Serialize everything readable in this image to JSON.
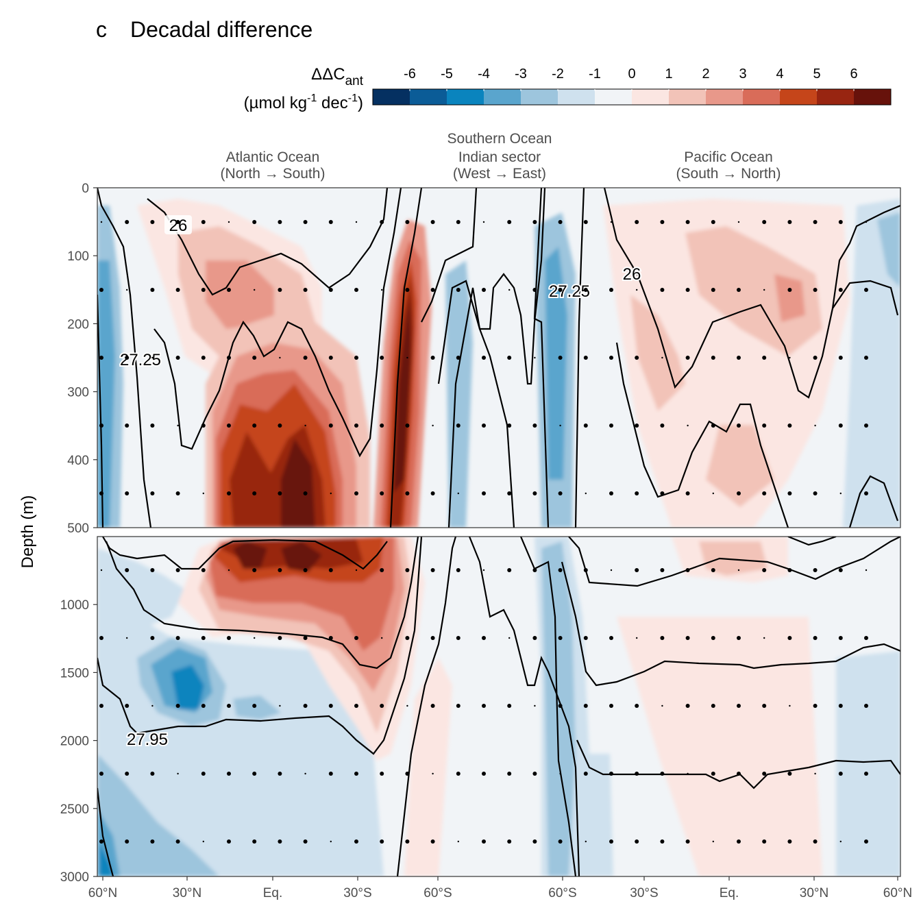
{
  "figure": {
    "panel_letter": "c",
    "title": "Decadal difference"
  },
  "legend": {
    "title_line1_main": "ΔΔC",
    "title_line1_sub": "ant",
    "title_line2_a": "(µmol kg",
    "title_line2_sup1": "-1",
    "title_line2_b": " dec",
    "title_line2_sup2": "-1",
    "title_line2_c": ")",
    "ticks": [
      "-6",
      "-5",
      "-4",
      "-3",
      "-2",
      "-1",
      "0",
      "1",
      "2",
      "3",
      "4",
      "5",
      "6"
    ],
    "colors": [
      "#053061",
      "#0b5c97",
      "#0a84be",
      "#5aa5cd",
      "#9dc5dd",
      "#cfe1ee",
      "#f1f4f7",
      "#fbe6e2",
      "#f2c3b8",
      "#e8988a",
      "#d96c59",
      "#c5451a",
      "#982511",
      "#67120b"
    ]
  },
  "sections": [
    {
      "line1": "",
      "line2": "Atlantic Ocean",
      "line3": "(North → South)"
    },
    {
      "line1": "Southern Ocean",
      "line2": "Indian sector",
      "line3": "(West → East)"
    },
    {
      "line1": "",
      "line2": "Pacific Ocean",
      "line3": "(South → North)"
    }
  ],
  "chart_data": {
    "type": "heatmap",
    "description_free": true,
    "ylabel": "Depth (m)",
    "upper_panel": {
      "ylim": [
        500,
        0
      ],
      "yticks": [
        "0",
        "100",
        "200",
        "300",
        "400",
        "500"
      ]
    },
    "lower_panel": {
      "ylim": [
        3000,
        500
      ],
      "yticks": [
        "1000",
        "1500",
        "2000",
        "2500",
        "3000"
      ]
    },
    "xticks": [
      "60°N",
      "30°N",
      "Eq.",
      "30°S",
      "60°S",
      "60°S",
      "30°S",
      "Eq.",
      "30°N",
      "60°N"
    ],
    "isopycnal_labels": [
      "26",
      "27.25",
      "26",
      "27.25",
      "27.95"
    ],
    "colorbar_range": [
      -6,
      6
    ],
    "features": [
      {
        "region": "Atlantic 20°N–20°S",
        "depth_range": [
          300,
          700
        ],
        "value": 5.5
      },
      {
        "region": "Atlantic ~45°S",
        "depth_range": [
          100,
          400
        ],
        "value": 6
      },
      {
        "region": "Atlantic ~35°N",
        "depth_range": [
          1400,
          1800
        ],
        "value": -5
      },
      {
        "region": "Indian sector ~60°S",
        "depth_range": [
          100,
          500
        ],
        "value": -3
      },
      {
        "region": "Pacific ~20°N",
        "depth_range": [
          150,
          250
        ],
        "value": 3
      }
    ]
  }
}
